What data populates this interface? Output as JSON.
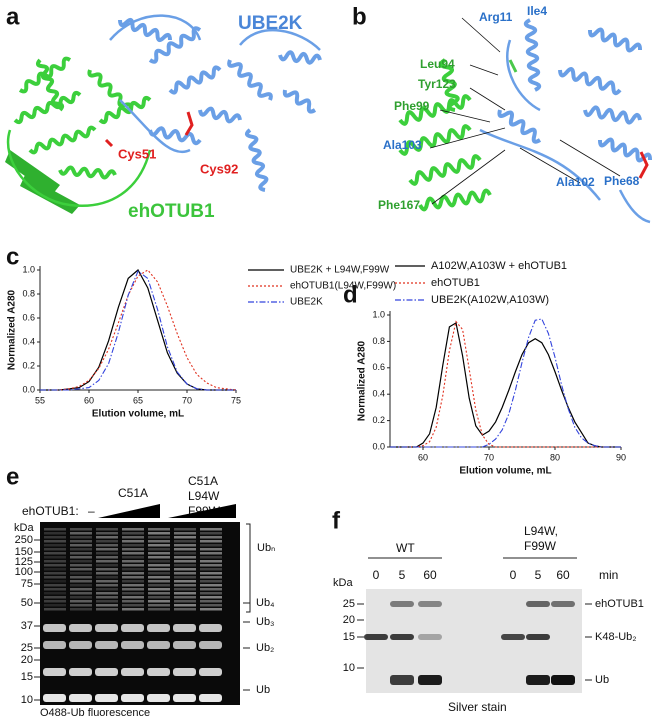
{
  "panels": {
    "a": {
      "label": "a",
      "ube2k": "UBE2K",
      "cys92": "Cys92",
      "cys51": "Cys51",
      "ehotub1": "ehOTUB1"
    },
    "b": {
      "label": "b",
      "arg11": "Arg11",
      "ile4": "Ile4",
      "leu94": "Leu94",
      "tyr123": "Tyr123",
      "phe99": "Phe99",
      "ala103": "Ala103",
      "ala102": "Ala102",
      "phe68": "Phe68",
      "phe167": "Phe167"
    },
    "e": {
      "label": "e",
      "enzyme": "ehOTUB1:",
      "none": "–",
      "c51a": "C51A",
      "mutant": [
        "C51A",
        "L94W",
        "F99W"
      ],
      "kda": "kDa",
      "markers": [
        "250",
        "150",
        "125",
        "100",
        "75",
        "50",
        "37",
        "25",
        "20",
        "15",
        "10"
      ],
      "bands": [
        "Ubₙ",
        "Ub₄",
        "Ub₃",
        "Ub₂",
        "Ub"
      ],
      "caption": "O488-Ub fluorescence"
    },
    "f": {
      "label": "f",
      "wt": "WT",
      "mutant": [
        "L94W,",
        "F99W"
      ],
      "times": [
        "0",
        "5",
        "60"
      ],
      "min": "min",
      "kda": "kDa",
      "markers": [
        "25",
        "20",
        "15",
        "10"
      ],
      "bands": [
        "ehOTUB1",
        "K48-Ub₂",
        "Ub"
      ],
      "caption": "Silver stain"
    }
  },
  "chart_data": [
    {
      "type": "line",
      "panel": "c",
      "xlabel": "Elution volume, mL",
      "ylabel": "Normalized A280",
      "legend": "right",
      "x": [
        55,
        56,
        57,
        58,
        59,
        60,
        61,
        62,
        63,
        64,
        65,
        66,
        67,
        68,
        69,
        70,
        71,
        72,
        73,
        74,
        75
      ],
      "xlim": [
        55,
        75
      ],
      "xticks": [
        55,
        60,
        65,
        70,
        75
      ],
      "ylim": [
        0,
        1
      ],
      "yticks": [
        {
          "value": 0,
          "label": "0.0"
        },
        {
          "value": 0.2,
          "label": "0.2"
        },
        {
          "value": 0.4,
          "label": "0.4"
        },
        {
          "value": 0.6,
          "label": "0.6"
        },
        {
          "value": 0.8,
          "label": "0.8"
        },
        {
          "value": 1,
          "label": "1.0"
        }
      ],
      "series": [
        {
          "name": "UBE2K + L94W,F99W",
          "color": "#000000",
          "dash": "solid",
          "values": [
            0,
            0,
            0,
            0.01,
            0.02,
            0.07,
            0.19,
            0.41,
            0.69,
            0.93,
            1.0,
            0.85,
            0.58,
            0.31,
            0.14,
            0.05,
            0.01,
            0,
            0,
            0,
            0
          ]
        },
        {
          "name": "ehOTUB1(L94W,F99W)",
          "color": "#e0301e",
          "dash": "dotted",
          "values": [
            0,
            0,
            0,
            0.01,
            0.03,
            0.08,
            0.18,
            0.34,
            0.56,
            0.79,
            0.95,
            1.0,
            0.9,
            0.7,
            0.47,
            0.27,
            0.13,
            0.06,
            0.02,
            0.01,
            0
          ]
        },
        {
          "name": "UBE2K",
          "color": "#3344dd",
          "dash": "dashdot",
          "values": [
            0,
            0,
            0,
            0,
            0.01,
            0.02,
            0.08,
            0.22,
            0.48,
            0.79,
            0.99,
            0.93,
            0.67,
            0.36,
            0.15,
            0.05,
            0.01,
            0,
            0,
            0,
            0
          ]
        }
      ]
    },
    {
      "type": "line",
      "panel": "d",
      "xlabel": "Elution volume, mL",
      "ylabel": "Normalized A280",
      "legend": "top",
      "x": [
        55,
        56,
        57,
        58,
        59,
        60,
        61,
        62,
        63,
        64,
        65,
        66,
        67,
        68,
        69,
        70,
        71,
        72,
        73,
        74,
        75,
        76,
        77,
        78,
        79,
        80,
        81,
        82,
        83,
        84,
        85,
        86,
        87,
        88,
        89,
        90
      ],
      "xlim": [
        55,
        90
      ],
      "xticks": [
        60,
        70,
        80,
        90
      ],
      "ylim": [
        0,
        1
      ],
      "yticks": [
        {
          "value": 0,
          "label": "0.0"
        },
        {
          "value": 0.2,
          "label": "0.2"
        },
        {
          "value": 0.4,
          "label": "0.4"
        },
        {
          "value": 0.6,
          "label": "0.6"
        },
        {
          "value": 0.8,
          "label": "0.8"
        },
        {
          "value": 1,
          "label": "1.0"
        }
      ],
      "series": [
        {
          "name": "A102W,A103W  + ehOTUB1",
          "color": "#000000",
          "dash": "solid",
          "values": [
            0,
            0,
            0,
            0,
            0,
            0.03,
            0.1,
            0.3,
            0.62,
            0.91,
            0.94,
            0.69,
            0.37,
            0.16,
            0.09,
            0.12,
            0.19,
            0.3,
            0.43,
            0.57,
            0.7,
            0.79,
            0.82,
            0.79,
            0.7,
            0.57,
            0.43,
            0.3,
            0.19,
            0.11,
            0.03,
            0.01,
            0,
            0,
            0,
            0
          ]
        },
        {
          "name": "ehOTUB1",
          "color": "#e0301e",
          "dash": "dotted",
          "values": [
            0,
            0,
            0,
            0,
            0,
            0.01,
            0.04,
            0.15,
            0.39,
            0.73,
            0.95,
            0.89,
            0.59,
            0.28,
            0.09,
            0.02,
            0,
            0,
            0,
            0,
            0,
            0,
            0,
            0,
            0,
            0,
            0,
            0,
            0,
            0,
            0,
            0,
            0,
            0,
            0,
            0
          ]
        },
        {
          "name": "UBE2K(A102W,A103W)",
          "color": "#3344dd",
          "dash": "dashdot",
          "values": [
            0,
            0,
            0,
            0,
            0,
            0,
            0,
            0,
            0,
            0,
            0,
            0,
            0,
            0,
            0,
            0.02,
            0.06,
            0.13,
            0.25,
            0.43,
            0.64,
            0.83,
            0.96,
            0.97,
            0.86,
            0.68,
            0.47,
            0.29,
            0.15,
            0.07,
            0.03,
            0.01,
            0,
            0,
            0,
            0
          ]
        }
      ]
    }
  ]
}
